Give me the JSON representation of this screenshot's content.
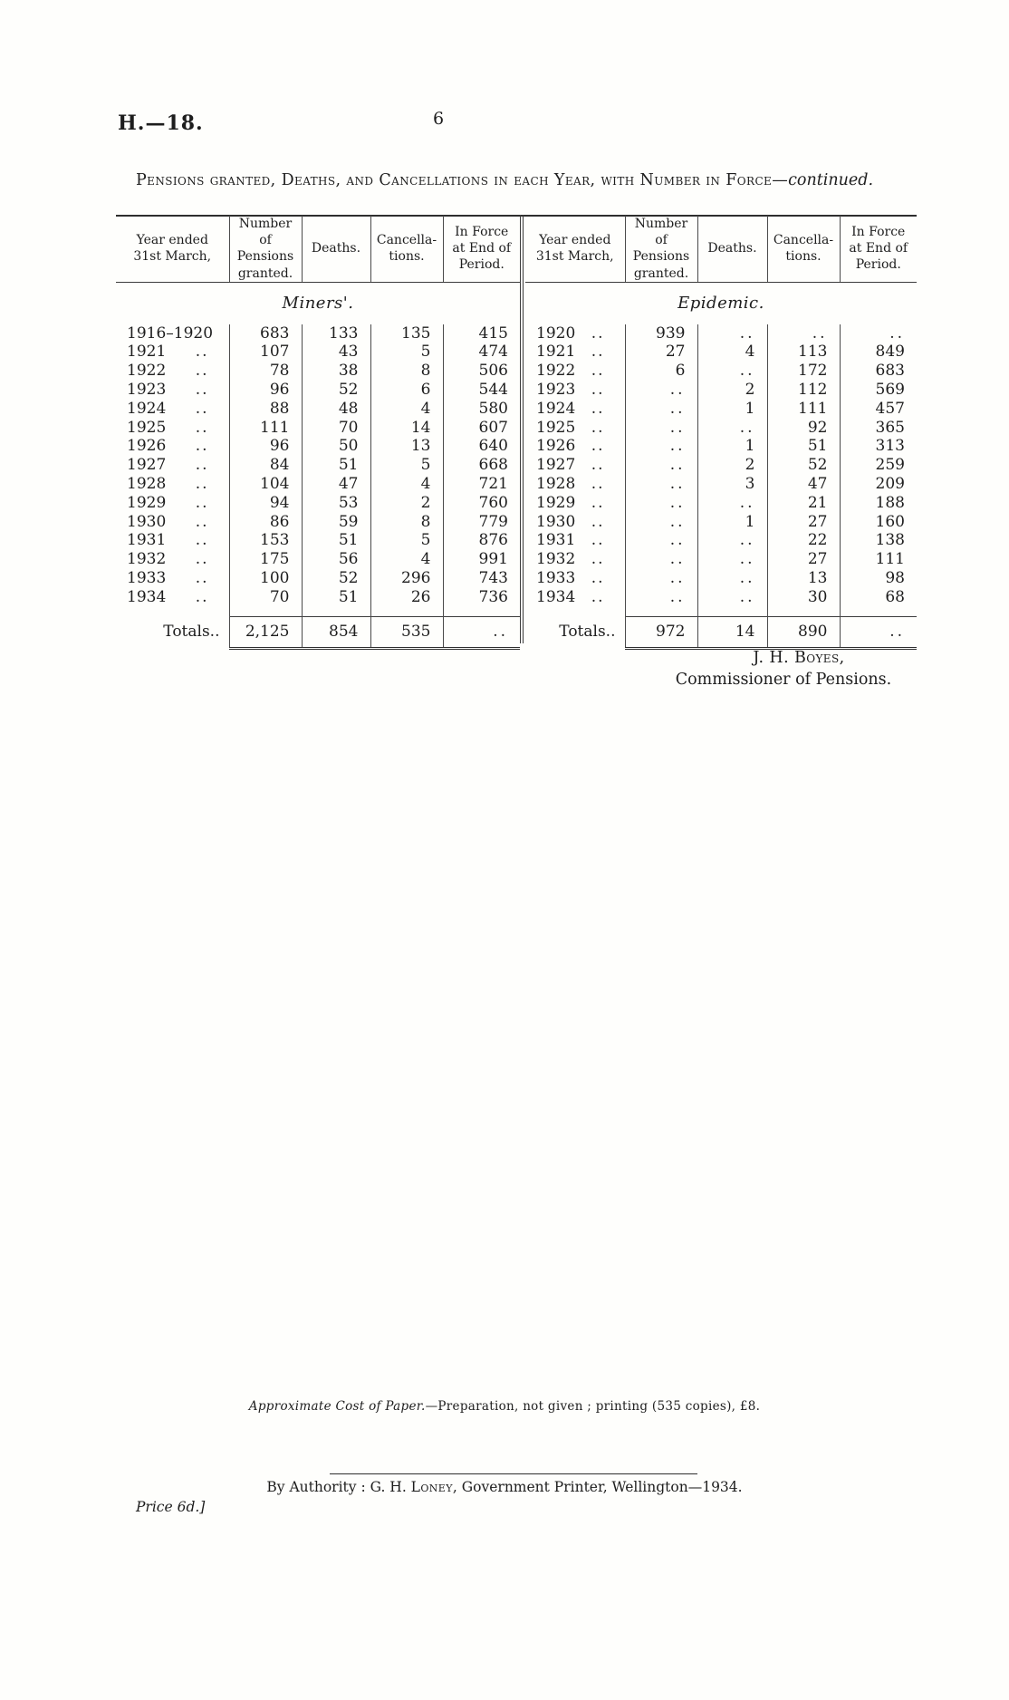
{
  "page": {
    "doc_ref": "H.—18.",
    "page_number": "6",
    "title_main": "Pensions granted, Deaths, and Cancellations in each Year, with Number in Force—",
    "title_suffix": "continued."
  },
  "table_headers": [
    "Year ended\n31st March,",
    "Number of\nPensions\ngranted.",
    "Deaths.",
    "Cancella-\ntions.",
    "In Force\nat End of\nPeriod."
  ],
  "tables": [
    {
      "section_title": "Miners'.",
      "rows": [
        {
          "year": "1916–1920",
          "dots": "",
          "cells": [
            "683",
            "133",
            "135",
            "415"
          ]
        },
        {
          "year": "1921",
          "dots": "..",
          "cells": [
            "107",
            "43",
            "5",
            "474"
          ]
        },
        {
          "year": "1922",
          "dots": "..",
          "cells": [
            "78",
            "38",
            "8",
            "506"
          ]
        },
        {
          "year": "1923",
          "dots": "..",
          "cells": [
            "96",
            "52",
            "6",
            "544"
          ]
        },
        {
          "year": "1924",
          "dots": "..",
          "cells": [
            "88",
            "48",
            "4",
            "580"
          ]
        },
        {
          "year": "1925",
          "dots": "..",
          "cells": [
            "111",
            "70",
            "14",
            "607"
          ]
        },
        {
          "year": "1926",
          "dots": "..",
          "cells": [
            "96",
            "50",
            "13",
            "640"
          ]
        },
        {
          "year": "1927",
          "dots": "..",
          "cells": [
            "84",
            "51",
            "5",
            "668"
          ]
        },
        {
          "year": "1928",
          "dots": "..",
          "cells": [
            "104",
            "47",
            "4",
            "721"
          ]
        },
        {
          "year": "1929",
          "dots": "..",
          "cells": [
            "94",
            "53",
            "2",
            "760"
          ]
        },
        {
          "year": "1930",
          "dots": "..",
          "cells": [
            "86",
            "59",
            "8",
            "779"
          ]
        },
        {
          "year": "1931",
          "dots": "..",
          "cells": [
            "153",
            "51",
            "5",
            "876"
          ]
        },
        {
          "year": "1932",
          "dots": "..",
          "cells": [
            "175",
            "56",
            "4",
            "991"
          ]
        },
        {
          "year": "1933",
          "dots": "..",
          "cells": [
            "100",
            "52",
            "296",
            "743"
          ]
        },
        {
          "year": "1934",
          "dots": "..",
          "cells": [
            "70",
            "51",
            "26",
            "736"
          ]
        }
      ],
      "totals": {
        "label": "Totals..",
        "cells": [
          "2,125",
          "854",
          "535",
          ".."
        ]
      }
    },
    {
      "section_title": "Epidemic.",
      "rows": [
        {
          "year": "1920",
          "dots": "..",
          "cells": [
            "939",
            "..",
            "..",
            ".."
          ]
        },
        {
          "year": "1921",
          "dots": "..",
          "cells": [
            "27",
            "4",
            "113",
            "849"
          ]
        },
        {
          "year": "1922",
          "dots": "..",
          "cells": [
            "6",
            "..",
            "172",
            "683"
          ]
        },
        {
          "year": "1923",
          "dots": "..",
          "cells": [
            "..",
            "2",
            "112",
            "569"
          ]
        },
        {
          "year": "1924",
          "dots": "..",
          "cells": [
            "..",
            "1",
            "111",
            "457"
          ]
        },
        {
          "year": "1925",
          "dots": "..",
          "cells": [
            "..",
            "..",
            "92",
            "365"
          ]
        },
        {
          "year": "1926",
          "dots": "..",
          "cells": [
            "..",
            "1",
            "51",
            "313"
          ]
        },
        {
          "year": "1927",
          "dots": "..",
          "cells": [
            "..",
            "2",
            "52",
            "259"
          ]
        },
        {
          "year": "1928",
          "dots": "..",
          "cells": [
            "..",
            "3",
            "47",
            "209"
          ]
        },
        {
          "year": "1929",
          "dots": "..",
          "cells": [
            "..",
            "..",
            "21",
            "188"
          ]
        },
        {
          "year": "1930",
          "dots": "..",
          "cells": [
            "..",
            "1",
            "27",
            "160"
          ]
        },
        {
          "year": "1931",
          "dots": "..",
          "cells": [
            "..",
            "..",
            "22",
            "138"
          ]
        },
        {
          "year": "1932",
          "dots": "..",
          "cells": [
            "..",
            "..",
            "27",
            "111"
          ]
        },
        {
          "year": "1933",
          "dots": "..",
          "cells": [
            "..",
            "..",
            "13",
            "98"
          ]
        },
        {
          "year": "1934",
          "dots": "..",
          "cells": [
            "..",
            "..",
            "30",
            "68"
          ]
        }
      ],
      "totals": {
        "label": "Totals..",
        "cells": [
          "972",
          "14",
          "890",
          ".."
        ]
      }
    }
  ],
  "signature": {
    "name": "J. H. Boyes,",
    "role": "Commissioner of Pensions."
  },
  "footnote": {
    "lead_italic": "Approximate Cost of Paper.",
    "rest": "—Preparation, not given ; printing (535 copies), £8."
  },
  "imprint": {
    "authority_pre": "By Authority : G. H. ",
    "authority_name": "Loney",
    "authority_post": ", Government Printer, Wellington—1934.",
    "price": "Price 6d.]"
  }
}
